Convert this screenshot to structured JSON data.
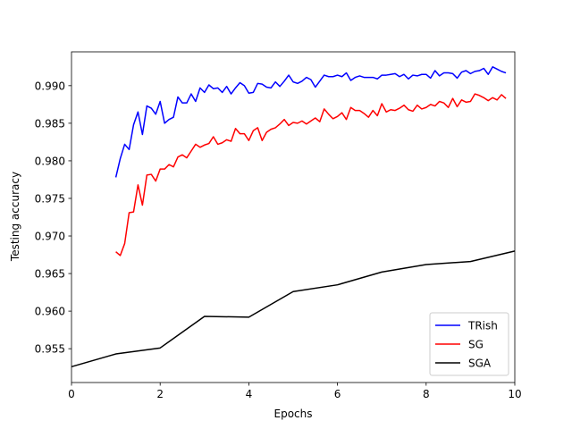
{
  "chart_data": {
    "type": "line",
    "xlabel": "Epochs",
    "ylabel": "Testing accuracy",
    "xlim": [
      0,
      10
    ],
    "ylim": [
      0.9505,
      0.9945
    ],
    "xticks": [
      0,
      2,
      4,
      6,
      8,
      10
    ],
    "yticks": [
      0.955,
      0.96,
      0.965,
      0.97,
      0.975,
      0.98,
      0.985,
      0.99
    ],
    "ytick_labels": [
      "0.955",
      "0.960",
      "0.965",
      "0.970",
      "0.975",
      "0.980",
      "0.985",
      "0.990"
    ],
    "grid": false,
    "legend_position": "bottom-right",
    "series": [
      {
        "name": "TRish",
        "color": "#0000ff",
        "x": [
          1.0,
          1.1,
          1.2,
          1.3,
          1.4,
          1.5,
          1.6,
          1.7,
          1.8,
          1.9,
          2.0,
          2.1,
          2.2,
          2.3,
          2.4,
          2.5,
          2.6,
          2.7,
          2.8,
          2.9,
          3.0,
          3.1,
          3.2,
          3.3,
          3.4,
          3.5,
          3.6,
          3.7,
          3.8,
          3.9,
          4.0,
          4.1,
          4.2,
          4.3,
          4.4,
          4.5,
          4.6,
          4.7,
          4.8,
          4.9,
          5.0,
          5.1,
          5.2,
          5.3,
          5.4,
          5.5,
          5.6,
          5.7,
          5.8,
          5.9,
          6.0,
          6.1,
          6.2,
          6.3,
          6.4,
          6.5,
          6.6,
          6.7,
          6.8,
          6.9,
          7.0,
          7.1,
          7.2,
          7.3,
          7.4,
          7.5,
          7.6,
          7.7,
          7.8,
          7.9,
          8.0,
          8.1,
          8.2,
          8.3,
          8.4,
          8.5,
          8.6,
          8.7,
          8.8,
          8.9,
          9.0,
          9.1,
          9.2,
          9.3,
          9.4,
          9.5,
          9.6,
          9.7,
          9.8
        ],
        "y": [
          0.9778,
          0.9803,
          0.9822,
          0.9815,
          0.9848,
          0.9865,
          0.9835,
          0.9873,
          0.987,
          0.9862,
          0.9879,
          0.985,
          0.9855,
          0.9858,
          0.9885,
          0.9877,
          0.9877,
          0.9889,
          0.9879,
          0.9897,
          0.9891,
          0.9901,
          0.9896,
          0.9897,
          0.9891,
          0.9899,
          0.9889,
          0.9897,
          0.9904,
          0.99,
          0.989,
          0.9891,
          0.9903,
          0.9902,
          0.9898,
          0.9897,
          0.9905,
          0.9899,
          0.9906,
          0.9914,
          0.9905,
          0.9903,
          0.9906,
          0.9911,
          0.9908,
          0.9898,
          0.9906,
          0.9914,
          0.9912,
          0.9912,
          0.9914,
          0.9912,
          0.9917,
          0.9907,
          0.9911,
          0.9913,
          0.9911,
          0.9911,
          0.9911,
          0.9909,
          0.9914,
          0.9914,
          0.9915,
          0.9916,
          0.9912,
          0.9915,
          0.9909,
          0.9914,
          0.9913,
          0.9915,
          0.9915,
          0.991,
          0.992,
          0.9913,
          0.9917,
          0.9917,
          0.9916,
          0.991,
          0.9918,
          0.992,
          0.9916,
          0.9919,
          0.992,
          0.9923,
          0.9915,
          0.9925,
          0.9922,
          0.9919,
          0.9917
        ]
      },
      {
        "name": "SG",
        "color": "#ff0000",
        "x": [
          1.0,
          1.1,
          1.2,
          1.3,
          1.4,
          1.5,
          1.6,
          1.7,
          1.8,
          1.9,
          2.0,
          2.1,
          2.2,
          2.3,
          2.4,
          2.5,
          2.6,
          2.7,
          2.8,
          2.9,
          3.0,
          3.1,
          3.2,
          3.3,
          3.4,
          3.5,
          3.6,
          3.7,
          3.8,
          3.9,
          4.0,
          4.1,
          4.2,
          4.3,
          4.4,
          4.5,
          4.6,
          4.7,
          4.8,
          4.9,
          5.0,
          5.1,
          5.2,
          5.3,
          5.4,
          5.5,
          5.6,
          5.7,
          5.8,
          5.9,
          6.0,
          6.1,
          6.2,
          6.3,
          6.4,
          6.5,
          6.6,
          6.7,
          6.8,
          6.9,
          7.0,
          7.1,
          7.2,
          7.3,
          7.4,
          7.5,
          7.6,
          7.7,
          7.8,
          7.9,
          8.0,
          8.1,
          8.2,
          8.3,
          8.4,
          8.5,
          8.6,
          8.7,
          8.8,
          8.9,
          9.0,
          9.1,
          9.2,
          9.3,
          9.4,
          9.5,
          9.6,
          9.7,
          9.8
        ],
        "y": [
          0.9679,
          0.9674,
          0.969,
          0.9731,
          0.9732,
          0.9768,
          0.9741,
          0.9781,
          0.9782,
          0.9773,
          0.9789,
          0.9789,
          0.9795,
          0.9792,
          0.9805,
          0.9808,
          0.9804,
          0.9813,
          0.9822,
          0.9818,
          0.9821,
          0.9823,
          0.9832,
          0.9822,
          0.9824,
          0.9828,
          0.9826,
          0.9843,
          0.9836,
          0.9836,
          0.9827,
          0.984,
          0.9844,
          0.9827,
          0.9838,
          0.9842,
          0.9844,
          0.9849,
          0.9855,
          0.9847,
          0.9851,
          0.985,
          0.9853,
          0.9849,
          0.9853,
          0.9857,
          0.9852,
          0.9869,
          0.9862,
          0.9856,
          0.9859,
          0.9864,
          0.9855,
          0.9871,
          0.9867,
          0.9867,
          0.9863,
          0.9858,
          0.9867,
          0.986,
          0.9876,
          0.9865,
          0.9868,
          0.9867,
          0.987,
          0.9874,
          0.9868,
          0.9866,
          0.9874,
          0.9869,
          0.9871,
          0.9875,
          0.9873,
          0.9879,
          0.9877,
          0.9871,
          0.9883,
          0.9872,
          0.9881,
          0.9878,
          0.9879,
          0.9889,
          0.9887,
          0.9884,
          0.988,
          0.9884,
          0.9881,
          0.9888,
          0.9883
        ]
      },
      {
        "name": "SGA",
        "color": "#000000",
        "x": [
          0,
          1,
          2,
          3,
          4,
          5,
          6,
          7,
          8,
          9,
          10
        ],
        "y": [
          0.9526,
          0.9543,
          0.9551,
          0.9593,
          0.9592,
          0.9626,
          0.9635,
          0.9652,
          0.9662,
          0.9666,
          0.968
        ]
      }
    ]
  }
}
